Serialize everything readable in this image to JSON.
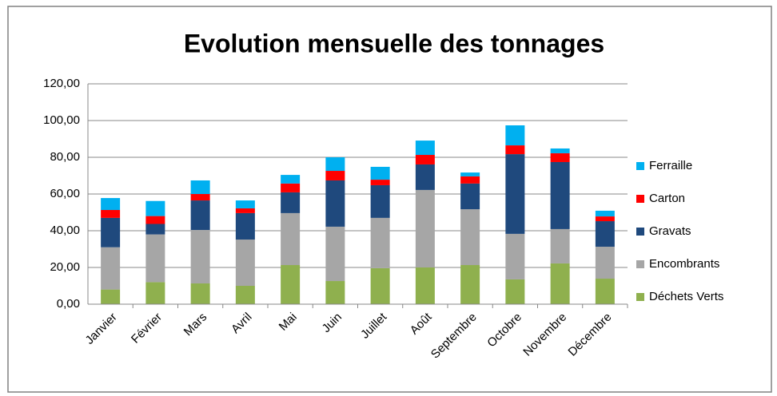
{
  "chart_data": {
    "type": "stacked_bar",
    "title": "Evolution mensuelle des tonnages",
    "categories": [
      "Janvier",
      "Février",
      "Mars",
      "Avril",
      "Mai",
      "Juin",
      "Juillet",
      "Août",
      "Septembre",
      "Octobre",
      "Novembre",
      "Décembre"
    ],
    "series": [
      {
        "name": "Déchets Verts",
        "color": "#8fb04e",
        "values": [
          8,
          12,
          11.3,
          10,
          21.3,
          12.6,
          19.6,
          20,
          21.3,
          13.5,
          22.2,
          13.9
        ]
      },
      {
        "name": "Encombrants",
        "color": "#a6a6a6",
        "values": [
          23,
          26,
          29.1,
          25.2,
          28.3,
          29.6,
          27.4,
          42.2,
          30.4,
          24.8,
          18.7,
          17.4
        ]
      },
      {
        "name": "Gravats",
        "color": "#1f497d",
        "values": [
          16,
          5.7,
          16.1,
          14.4,
          11.3,
          25.2,
          17.8,
          13.9,
          14,
          43.4,
          36.5,
          13.9
        ]
      },
      {
        "name": "Carton",
        "color": "#ff0000",
        "values": [
          4.3,
          4.3,
          3.5,
          2.6,
          4.8,
          5.2,
          3,
          5.2,
          3.9,
          4.8,
          4.8,
          2.6
        ]
      },
      {
        "name": "Ferraille",
        "color": "#00b0f0",
        "values": [
          6.5,
          8.2,
          7.4,
          4.3,
          4.7,
          7.4,
          7,
          7.8,
          2.1,
          10.9,
          2.6,
          3.1
        ]
      }
    ],
    "ylim": [
      0,
      120
    ],
    "yticks": [
      {
        "value": 0,
        "label": "0,00"
      },
      {
        "value": 20,
        "label": "20,00"
      },
      {
        "value": 40,
        "label": "40,00"
      },
      {
        "value": 60,
        "label": "60,00"
      },
      {
        "value": 80,
        "label": "80,00"
      },
      {
        "value": 100,
        "label": "100,00"
      },
      {
        "value": 120,
        "label": "120,00"
      }
    ],
    "grid": true,
    "legend": "right"
  }
}
